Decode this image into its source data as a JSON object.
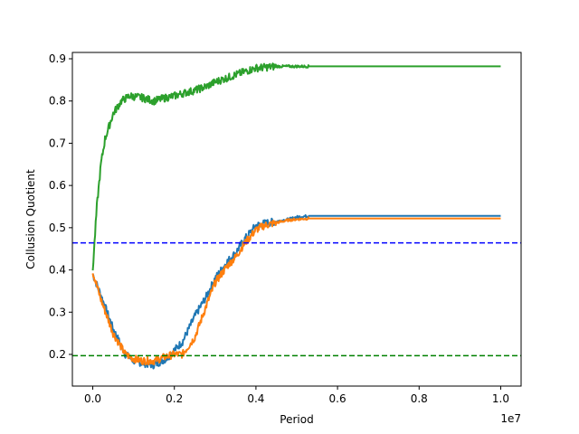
{
  "chart_data": {
    "type": "line",
    "title": "",
    "xlabel": "Period",
    "ylabel": "Collusion Quotient",
    "x_offset_label": "1e7",
    "xlim": [
      -0.05,
      1.05
    ],
    "ylim": [
      0.125,
      0.915
    ],
    "x_ticks": [
      0.0,
      0.2,
      0.4,
      0.6,
      0.8,
      1.0
    ],
    "x_tick_labels": [
      "0.0",
      "0.2",
      "0.4",
      "0.6",
      "0.8",
      "1.0"
    ],
    "y_ticks": [
      0.2,
      0.3,
      0.4,
      0.5,
      0.6,
      0.7,
      0.8,
      0.9
    ],
    "y_tick_labels": [
      "0.2",
      "0.3",
      "0.4",
      "0.5",
      "0.6",
      "0.7",
      "0.8",
      "0.9"
    ],
    "grid": false,
    "series": [
      {
        "color": "#1f77b4",
        "noise_until": 0.53,
        "x": [
          0.0,
          0.02,
          0.05,
          0.08,
          0.1,
          0.12,
          0.15,
          0.18,
          0.2,
          0.22,
          0.25,
          0.28,
          0.3,
          0.33,
          0.35,
          0.37,
          0.4,
          0.42,
          0.45,
          0.48,
          0.5,
          0.53,
          1.0
        ],
        "y": [
          0.39,
          0.34,
          0.26,
          0.2,
          0.185,
          0.18,
          0.175,
          0.19,
          0.21,
          0.23,
          0.29,
          0.34,
          0.38,
          0.42,
          0.44,
          0.47,
          0.505,
          0.51,
          0.515,
          0.52,
          0.525,
          0.528,
          0.528
        ]
      },
      {
        "color": "#ff7f0e",
        "noise_until": 0.53,
        "x": [
          0.0,
          0.02,
          0.05,
          0.08,
          0.1,
          0.12,
          0.15,
          0.18,
          0.2,
          0.22,
          0.25,
          0.28,
          0.3,
          0.33,
          0.35,
          0.37,
          0.4,
          0.42,
          0.45,
          0.48,
          0.5,
          0.53,
          1.0
        ],
        "y": [
          0.395,
          0.33,
          0.25,
          0.2,
          0.19,
          0.185,
          0.185,
          0.195,
          0.2,
          0.2,
          0.24,
          0.32,
          0.37,
          0.41,
          0.43,
          0.46,
          0.495,
          0.505,
          0.512,
          0.518,
          0.52,
          0.522,
          0.522
        ]
      },
      {
        "color": "#2ca02c",
        "noise_until": 0.53,
        "x": [
          0.0,
          0.01,
          0.02,
          0.03,
          0.05,
          0.07,
          0.09,
          0.12,
          0.15,
          0.18,
          0.2,
          0.22,
          0.25,
          0.28,
          0.3,
          0.33,
          0.35,
          0.38,
          0.4,
          0.45,
          0.5,
          0.53,
          1.0
        ],
        "y": [
          0.4,
          0.55,
          0.65,
          0.71,
          0.77,
          0.8,
          0.812,
          0.808,
          0.8,
          0.808,
          0.812,
          0.818,
          0.825,
          0.835,
          0.845,
          0.855,
          0.862,
          0.872,
          0.878,
          0.882,
          0.882,
          0.882,
          0.882
        ]
      }
    ],
    "hlines": [
      {
        "y": 0.464,
        "color": "#0000ff",
        "style": "dashed"
      },
      {
        "y": 0.197,
        "color": "#008000",
        "style": "dashed"
      }
    ]
  }
}
